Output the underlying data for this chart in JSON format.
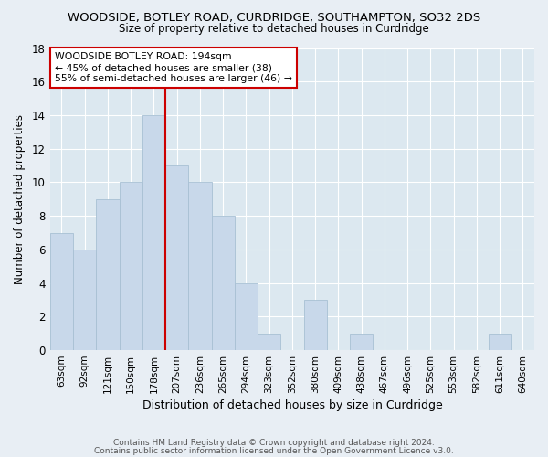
{
  "title": "WOODSIDE, BOTLEY ROAD, CURDRIDGE, SOUTHAMPTON, SO32 2DS",
  "subtitle": "Size of property relative to detached houses in Curdridge",
  "xlabel": "Distribution of detached houses by size in Curdridge",
  "ylabel": "Number of detached properties",
  "bar_color": "#c8d8ea",
  "bar_edge_color": "#a8c0d4",
  "categories": [
    "63sqm",
    "92sqm",
    "121sqm",
    "150sqm",
    "178sqm",
    "207sqm",
    "236sqm",
    "265sqm",
    "294sqm",
    "323sqm",
    "352sqm",
    "380sqm",
    "409sqm",
    "438sqm",
    "467sqm",
    "496sqm",
    "525sqm",
    "553sqm",
    "582sqm",
    "611sqm",
    "640sqm"
  ],
  "values": [
    7,
    6,
    9,
    10,
    14,
    11,
    10,
    8,
    4,
    1,
    0,
    3,
    0,
    1,
    0,
    0,
    0,
    0,
    0,
    1,
    0
  ],
  "ylim": [
    0,
    18
  ],
  "yticks": [
    0,
    2,
    4,
    6,
    8,
    10,
    12,
    14,
    16,
    18
  ],
  "vline_x": 4.5,
  "vline_color": "#cc0000",
  "annotation_text": "WOODSIDE BOTLEY ROAD: 194sqm\n← 45% of detached houses are smaller (38)\n55% of semi-detached houses are larger (46) →",
  "annotation_box_color": "#ffffff",
  "annotation_box_edge": "#cc0000",
  "footer1": "Contains HM Land Registry data © Crown copyright and database right 2024.",
  "footer2": "Contains public sector information licensed under the Open Government Licence v3.0.",
  "background_color": "#e8eef4",
  "plot_bg_color": "#dce8f0"
}
